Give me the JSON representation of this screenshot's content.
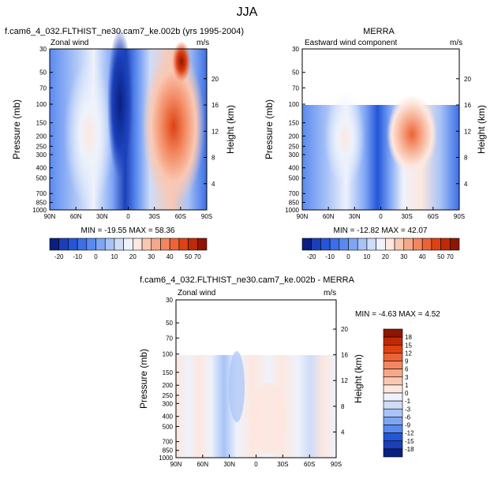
{
  "page": {
    "title": "JJA"
  },
  "chart_data": [
    {
      "type": "heatmap",
      "id": "panel1",
      "title": "f.cam6_4_032.FLTHIST_ne30.cam7_ke.002b (yrs 1995-2004)",
      "variable_label": "Zonal wind",
      "units": "m/s",
      "ylabel": "Pressure (mb)",
      "y2label": "Height (km)",
      "x_ticks": [
        "90N",
        "60N",
        "30N",
        "0",
        "30S",
        "60S",
        "90S"
      ],
      "y_ticks": [
        30,
        50,
        70,
        100,
        150,
        200,
        250,
        300,
        400,
        500,
        700,
        850,
        1000
      ],
      "y2_ticks": [
        20,
        16,
        12,
        8,
        4
      ],
      "ylim": [
        1000,
        30
      ],
      "min": -19.55,
      "max": 58.36,
      "min_label": "MIN = -19.55",
      "max_label": "MAX = 58.36",
      "extrema_text": "MIN = -19.55   MAX = 58.36"
    },
    {
      "type": "heatmap",
      "id": "panel2",
      "title": "MERRA",
      "variable_label": "Eastward wind component",
      "units": "m/s",
      "ylabel": "Pressure (mb)",
      "y2label": "Height (km)",
      "x_ticks": [
        "90N",
        "60N",
        "30N",
        "0",
        "30S",
        "60S",
        "90S"
      ],
      "y_ticks": [
        30,
        50,
        70,
        100,
        150,
        200,
        250,
        300,
        400,
        500,
        700,
        850,
        1000
      ],
      "y2_ticks": [
        20,
        16,
        12,
        8,
        4
      ],
      "ylim": [
        1000,
        30
      ],
      "data_top_pressure": 100,
      "min": -12.82,
      "max": 42.07,
      "min_label": "MIN = -12.82",
      "max_label": "MAX = 42.07",
      "extrema_text": "MIN = -12.82   MAX = 42.07"
    },
    {
      "type": "heatmap",
      "id": "panel3",
      "title": "f.cam6_4_032.FLTHIST_ne30.cam7_ke.002b - MERRA",
      "variable_label": "Zonal wind",
      "units": "m/s",
      "ylabel": "Pressure (mb)",
      "y2label": "Height (km)",
      "x_ticks": [
        "90N",
        "60N",
        "30N",
        "0",
        "30S",
        "60S",
        "90S"
      ],
      "y_ticks": [
        30,
        50,
        70,
        100,
        150,
        200,
        250,
        300,
        400,
        500,
        700,
        850,
        1000
      ],
      "y2_ticks": [
        20,
        16,
        12,
        8,
        4
      ],
      "ylim": [
        1000,
        30
      ],
      "data_top_pressure": 100,
      "min": -4.63,
      "max": 4.52,
      "min_label": "MIN = -4.63",
      "max_label": "MAX =  4.52",
      "extrema_text": "MIN = -4.63   MAX =  4.52"
    }
  ],
  "colorbars": {
    "abs": {
      "labels": [
        "-20",
        "-10",
        "0",
        "10",
        "20",
        "30",
        "40",
        "50",
        "70"
      ],
      "colors": [
        "#0a1f80",
        "#1a3fb8",
        "#2356d8",
        "#3b6fe6",
        "#5a8af0",
        "#7fa6f5",
        "#a8c3f7",
        "#cfdcf8",
        "#eef2fb",
        "#fde7df",
        "#f9c8b3",
        "#f6a98a",
        "#f2875f",
        "#ec6336",
        "#de4113",
        "#bf2a06",
        "#8e1503"
      ]
    },
    "diff": {
      "labels": [
        "18",
        "15",
        "12",
        "9",
        "6",
        "3",
        "1",
        "0",
        "-1",
        "-3",
        "-6",
        "-9",
        "-12",
        "-15",
        "-18"
      ],
      "colors": [
        "#8e1503",
        "#bf2a06",
        "#de4113",
        "#ec6336",
        "#f2875f",
        "#f6a98a",
        "#f9c8b3",
        "#fde7df",
        "#eef2fb",
        "#cfdcf8",
        "#a8c3f7",
        "#7fa6f5",
        "#5a8af0",
        "#2356d8",
        "#1a3fb8",
        "#0a1f80"
      ]
    }
  }
}
